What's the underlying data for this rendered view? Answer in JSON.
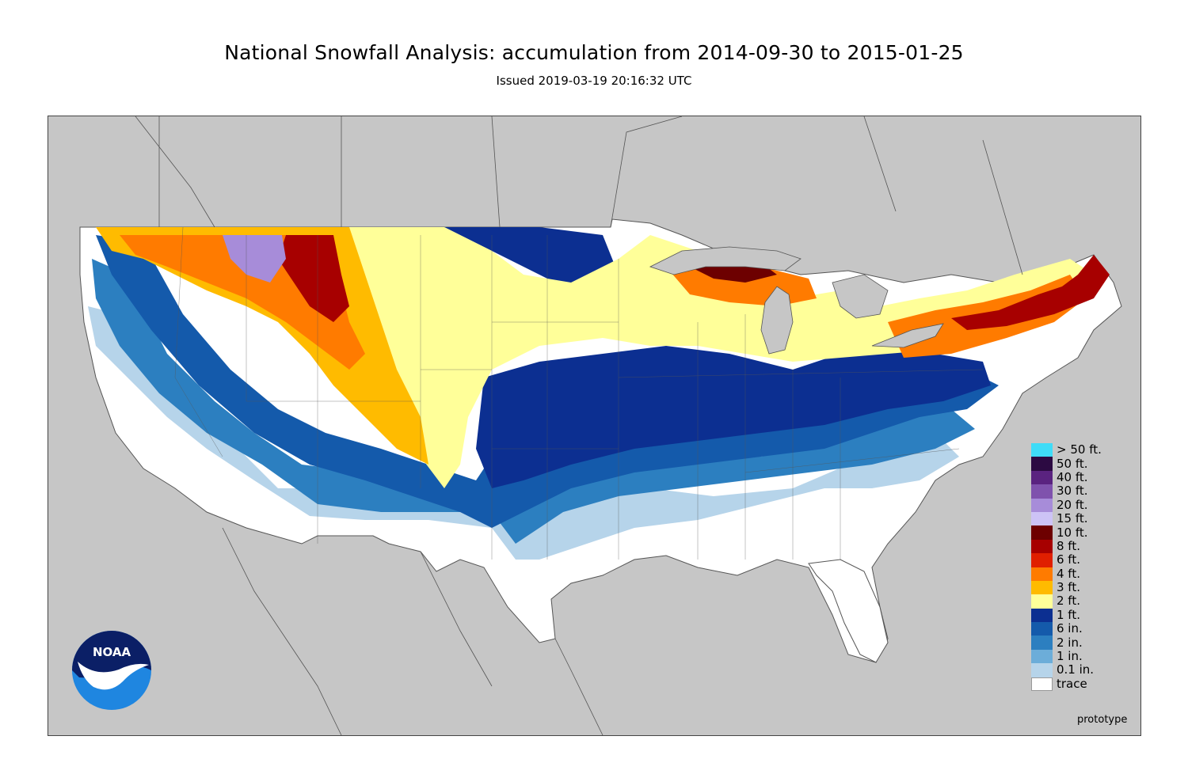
{
  "header": {
    "title": "National Snowfall Analysis: accumulation from 2014-09-30 to 2015-01-25",
    "issued": "Issued 2019-03-19 20:16:32 UTC"
  },
  "map": {
    "background_color": "#c6c6c6",
    "land_outside_color": "#c6c6c6",
    "border_color": "#555555"
  },
  "legend": {
    "items": [
      {
        "label": "> 50 ft.",
        "color": "#3fdcf8"
      },
      {
        "label": "50 ft.",
        "color": "#2c0a42"
      },
      {
        "label": "40 ft.",
        "color": "#5a2380"
      },
      {
        "label": "30 ft.",
        "color": "#7f52ad"
      },
      {
        "label": "20 ft.",
        "color": "#a78cd9"
      },
      {
        "label": "15 ft.",
        "color": "#cdc3f6"
      },
      {
        "label": "10 ft.",
        "color": "#6d0000"
      },
      {
        "label": "8 ft.",
        "color": "#a70000"
      },
      {
        "label": "6 ft.",
        "color": "#e01f00"
      },
      {
        "label": "4 ft.",
        "color": "#ff7b00"
      },
      {
        "label": "3 ft.",
        "color": "#ffbb00"
      },
      {
        "label": "2 ft.",
        "color": "#ffff99"
      },
      {
        "label": "1 ft.",
        "color": "#0c2f91"
      },
      {
        "label": "6 in.",
        "color": "#145aab"
      },
      {
        "label": "2 in.",
        "color": "#2c7fc0"
      },
      {
        "label": "1 in.",
        "color": "#6cadd9"
      },
      {
        "label": "0.1 in.",
        "color": "#b6d4ea"
      },
      {
        "label": "trace",
        "color": "#ffffff"
      }
    ]
  },
  "footer": {
    "note": "prototype"
  },
  "logo": {
    "text": "NOAA"
  }
}
